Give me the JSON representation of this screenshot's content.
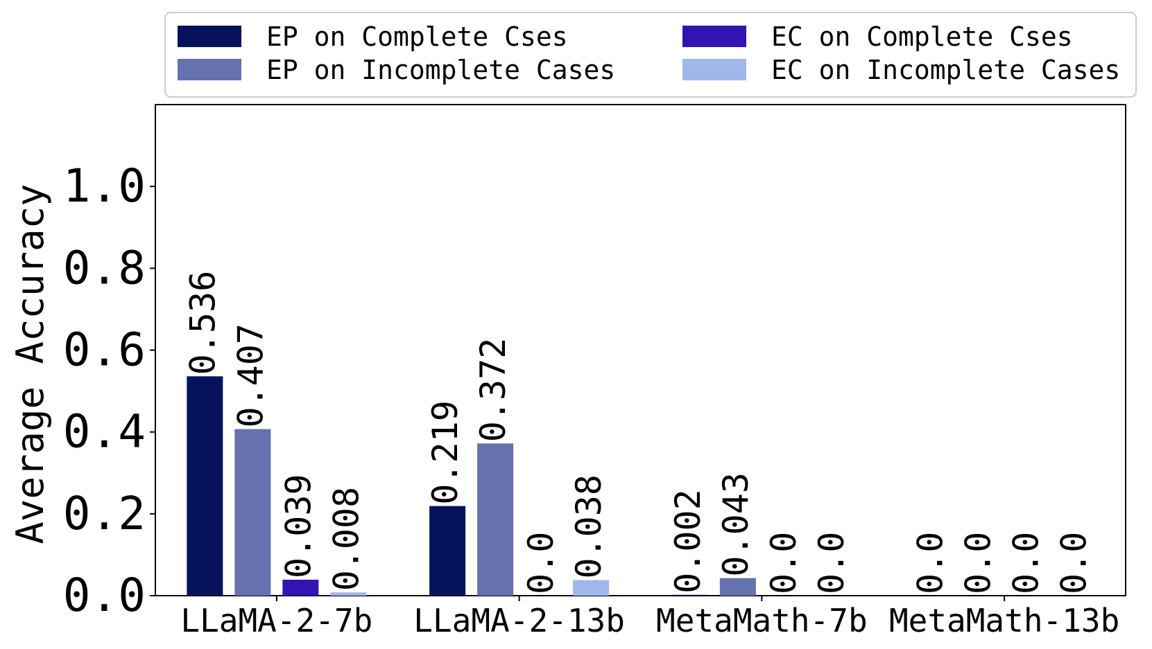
{
  "chart_data": {
    "type": "bar",
    "ylabel": "Average Accuracy",
    "xlabel": "",
    "ylim": [
      0,
      1.2
    ],
    "yticks": [
      0.0,
      0.2,
      0.4,
      0.6,
      0.8,
      1.0
    ],
    "ytick_labels": [
      "0.0",
      "0.2",
      "0.4",
      "0.6",
      "0.8",
      "1.0"
    ],
    "grid": false,
    "legend_position": "top",
    "categories": [
      "LLaMA-2-7b",
      "LLaMA-2-13b",
      "MetaMath-7b",
      "MetaMath-13b"
    ],
    "series": [
      {
        "name": "EP on Complete Cses",
        "color": "#06135c",
        "values": [
          0.536,
          0.219,
          0.002,
          0.0
        ],
        "labels": [
          "0.536",
          "0.219",
          "0.002",
          "0.0"
        ]
      },
      {
        "name": "EP on Incomplete Cases",
        "color": "#6672ad",
        "values": [
          0.407,
          0.372,
          0.043,
          0.0
        ],
        "labels": [
          "0.407",
          "0.372",
          "0.043",
          "0.0"
        ]
      },
      {
        "name": "EC on Complete Cses",
        "color": "#3114b2",
        "values": [
          0.039,
          0.0,
          0.0,
          0.0
        ],
        "labels": [
          "0.039",
          "0.0",
          "0.0",
          "0.0"
        ]
      },
      {
        "name": "EC on Incomplete Cases",
        "color": "#a1b6ea",
        "values": [
          0.008,
          0.038,
          0.0,
          0.0
        ],
        "labels": [
          "0.008",
          "0.038",
          "0.0",
          "0.0"
        ]
      }
    ]
  }
}
